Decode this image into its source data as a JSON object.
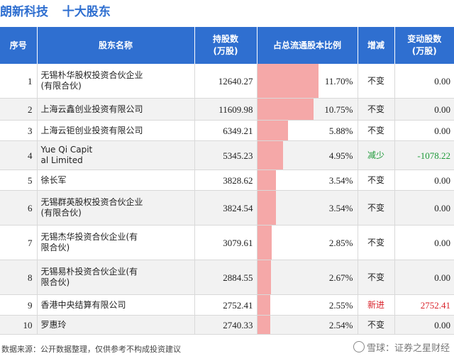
{
  "header": {
    "company": "朗新科技",
    "section": "十大股东"
  },
  "table": {
    "columns": [
      "序号",
      "股东名称",
      "持股数\n(万股)",
      "占总流通股本比例",
      "增减",
      "变动股数\n(万股)"
    ],
    "rows": [
      {
        "index": "1",
        "name": "无锡朴华股权投资合伙企业\n(有限合伙)",
        "shares": "12640.27",
        "ratio": "11.70%",
        "ratio_value": 11.7,
        "change": "不变",
        "delta": "0.00"
      },
      {
        "index": "2",
        "name": "上海云鑫创业投资有限公司",
        "shares": "11609.98",
        "ratio": "10.75%",
        "ratio_value": 10.75,
        "change": "不变",
        "delta": "0.00"
      },
      {
        "index": "3",
        "name": "上海云钜创业投资有限公司",
        "shares": "6349.21",
        "ratio": "5.88%",
        "ratio_value": 5.88,
        "change": "不变",
        "delta": "0.00"
      },
      {
        "index": "4",
        "name": "Yue Qi Capit\nal Limited",
        "shares": "5345.23",
        "ratio": "4.95%",
        "ratio_value": 4.95,
        "change": "减少",
        "delta": "-1078.22",
        "status": "green"
      },
      {
        "index": "5",
        "name": "徐长军",
        "shares": "3828.62",
        "ratio": "3.54%",
        "ratio_value": 3.54,
        "change": "不变",
        "delta": "0.00"
      },
      {
        "index": "6",
        "name": "无锡群英股权投资合伙企业\n(有限合伙)",
        "shares": "3824.54",
        "ratio": "3.54%",
        "ratio_value": 3.54,
        "change": "不变",
        "delta": "0.00"
      },
      {
        "index": "7",
        "name": "无锡杰华投资合伙企业(有\n限合伙)",
        "shares": "3079.61",
        "ratio": "2.85%",
        "ratio_value": 2.85,
        "change": "不变",
        "delta": "0.00"
      },
      {
        "index": "8",
        "name": "无锡易朴投资合伙企业(有\n限合伙)",
        "shares": "2884.55",
        "ratio": "2.67%",
        "ratio_value": 2.67,
        "change": "不变",
        "delta": "0.00"
      },
      {
        "index": "9",
        "name": "香港中央结算有限公司",
        "shares": "2752.41",
        "ratio": "2.55%",
        "ratio_value": 2.55,
        "change": "新进",
        "delta": "2752.41",
        "status": "red"
      },
      {
        "index": "10",
        "name": "罗惠玲",
        "shares": "2740.33",
        "ratio": "2.54%",
        "ratio_value": 2.54,
        "change": "不变",
        "delta": "0.00"
      }
    ]
  },
  "footer": {
    "source": "数据来源：公开数据整理，仅供参考不构成投资建议"
  },
  "watermark": {
    "text": "雪球：证券之星财经"
  }
}
